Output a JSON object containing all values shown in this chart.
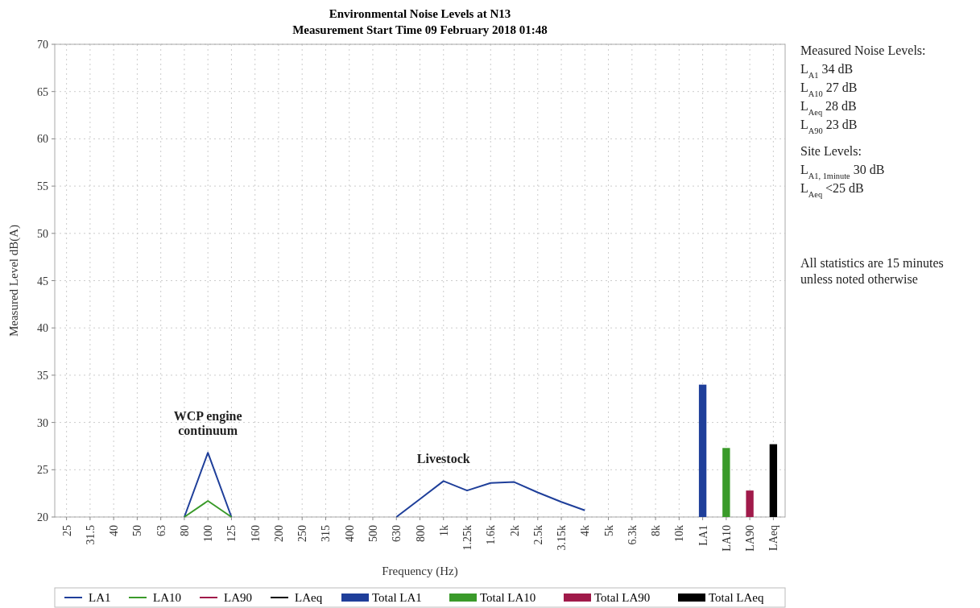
{
  "chart_data": {
    "type": "line",
    "title": "Environmental Noise Levels at N13",
    "subtitle": "Measurement Start Time 09 February 2018 01:48",
    "xlabel": "Frequency (Hz)",
    "ylabel": "Measured Level dB(A)",
    "categories": [
      "25",
      "31.5",
      "40",
      "50",
      "63",
      "80",
      "100",
      "125",
      "160",
      "200",
      "250",
      "315",
      "400",
      "500",
      "630",
      "800",
      "1k",
      "1.25k",
      "1.6k",
      "2k",
      "2.5k",
      "3.15k",
      "4k",
      "5k",
      "6.3k",
      "8k",
      "10k",
      "LA1",
      "LA10",
      "LA90",
      "LAeq"
    ],
    "ylim": [
      20,
      70
    ],
    "yticks": [
      20,
      25,
      30,
      35,
      40,
      45,
      50,
      55,
      60,
      65,
      70
    ],
    "grid": true,
    "legend": "bottom",
    "series": [
      {
        "name": "LA1",
        "color": "#1f3f9a",
        "values": [
          null,
          null,
          null,
          null,
          null,
          20,
          26.8,
          20,
          null,
          null,
          null,
          null,
          null,
          null,
          20,
          21.9,
          23.8,
          22.8,
          23.6,
          23.7,
          22.6,
          21.6,
          20.7,
          null,
          null,
          null,
          null,
          null,
          null,
          null,
          null
        ]
      },
      {
        "name": "LA10",
        "color": "#3a9a2a",
        "values": [
          null,
          null,
          null,
          null,
          null,
          20,
          21.7,
          20,
          null,
          null,
          null,
          null,
          null,
          null,
          null,
          null,
          null,
          null,
          null,
          null,
          null,
          null,
          null,
          null,
          null,
          null,
          null,
          null,
          null,
          null,
          null
        ]
      },
      {
        "name": "LA90",
        "color": "#a01a4a",
        "values": [
          null,
          null,
          null,
          null,
          null,
          null,
          null,
          null,
          null,
          null,
          null,
          null,
          null,
          null,
          null,
          null,
          null,
          null,
          null,
          null,
          null,
          null,
          null,
          null,
          null,
          null,
          null,
          null,
          null,
          null,
          null
        ]
      },
      {
        "name": "LAeq",
        "color": "#000000",
        "values": [
          null,
          null,
          null,
          null,
          null,
          null,
          null,
          null,
          null,
          null,
          null,
          null,
          null,
          null,
          null,
          null,
          null,
          null,
          null,
          null,
          null,
          null,
          null,
          null,
          null,
          null,
          null,
          null,
          null,
          null,
          null
        ]
      },
      {
        "name": "Total LA1",
        "type": "bar",
        "color": "#1f3f9a",
        "values": [
          null,
          null,
          null,
          null,
          null,
          null,
          null,
          null,
          null,
          null,
          null,
          null,
          null,
          null,
          null,
          null,
          null,
          null,
          null,
          null,
          null,
          null,
          null,
          null,
          null,
          null,
          null,
          34,
          null,
          null,
          null
        ]
      },
      {
        "name": "Total LA10",
        "type": "bar",
        "color": "#3a9a2a",
        "values": [
          null,
          null,
          null,
          null,
          null,
          null,
          null,
          null,
          null,
          null,
          null,
          null,
          null,
          null,
          null,
          null,
          null,
          null,
          null,
          null,
          null,
          null,
          null,
          null,
          null,
          null,
          null,
          null,
          27.3,
          null,
          null
        ]
      },
      {
        "name": "Total LA90",
        "type": "bar",
        "color": "#a01a4a",
        "values": [
          null,
          null,
          null,
          null,
          null,
          null,
          null,
          null,
          null,
          null,
          null,
          null,
          null,
          null,
          null,
          null,
          null,
          null,
          null,
          null,
          null,
          null,
          null,
          null,
          null,
          null,
          null,
          null,
          null,
          22.8,
          null
        ]
      },
      {
        "name": "Total LAeq",
        "type": "bar",
        "color": "#000000",
        "values": [
          null,
          null,
          null,
          null,
          null,
          null,
          null,
          null,
          null,
          null,
          null,
          null,
          null,
          null,
          null,
          null,
          null,
          null,
          null,
          null,
          null,
          null,
          null,
          null,
          null,
          null,
          null,
          null,
          null,
          null,
          27.7
        ]
      }
    ],
    "annotations": [
      {
        "text": "WCP engine continuum",
        "x": "100",
        "y": 26.8
      },
      {
        "text": "Livestock",
        "x": "1k",
        "y": 23.8
      },
      "Measured Noise Levels:",
      "L$_{A1}$ 34 dB",
      "L$_{A10}$ 27 dB",
      "L$_{Aeq}$ 28 dB",
      "L$_{A90}$ 23 dB",
      "Site Levels:",
      "L$_{A1, 1minute}$ 30 dB",
      "L$_{Aeq}$ <25 dB",
      "All statistics are 15 minutes unless noted otherwise"
    ]
  }
}
